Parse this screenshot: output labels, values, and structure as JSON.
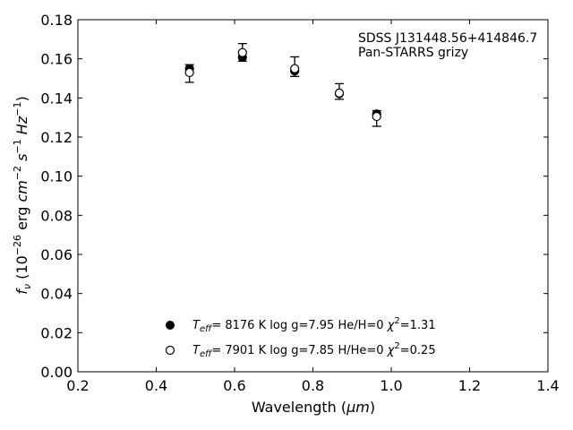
{
  "chart_data": {
    "type": "scatter",
    "xlabel_main": "Wavelength (",
    "xlabel_unit": "μm",
    "xlabel_close": ")",
    "ylabel_f": "f",
    "ylabel_sub": "ν",
    "ylabel_open": " (10",
    "ylabel_exp": "−26",
    "ylabel_erg": " erg ",
    "ylabel_cm": "cm",
    "ylabel_cm_exp": "−2",
    "ylabel_s": "s",
    "ylabel_s_exp": "−1",
    "ylabel_hz": "Hz",
    "ylabel_hz_exp": "−1",
    "ylabel_close": ")",
    "xlim": [
      0.2,
      1.4
    ],
    "ylim": [
      0.0,
      0.18
    ],
    "xticks": [
      "0.2",
      "0.4",
      "0.6",
      "0.8",
      "1.0",
      "1.2",
      "1.4"
    ],
    "yticks": [
      "0.00",
      "0.02",
      "0.04",
      "0.06",
      "0.08",
      "0.10",
      "0.12",
      "0.14",
      "0.16",
      "0.18"
    ],
    "annotation": [
      "SDSS J131448.56+414846.7",
      "Pan-STARRS grizy"
    ],
    "observed": {
      "x": [
        0.4849,
        0.6201,
        0.7535,
        0.8674,
        0.9628
      ],
      "y": [
        0.1525,
        0.1633,
        0.156,
        0.1433,
        0.1295
      ],
      "err": [
        0.0045,
        0.0045,
        0.005,
        0.004,
        0.004
      ]
    },
    "series": [
      {
        "marker": "filled",
        "x": [
          0.4849,
          0.6201,
          0.7535,
          0.8674,
          0.9628
        ],
        "y": [
          0.155,
          0.1608,
          0.1538,
          0.1422,
          0.1318
        ],
        "legend": {
          "teff_label": "T",
          "teff_sub": "eff",
          "teff_value": "=  8176 K",
          "logg": "log g=7.95",
          "comp": "He/H=0",
          "chi": "χ",
          "chi_exp": "2",
          "chi_value": "=1.31"
        }
      },
      {
        "marker": "open",
        "x": [
          0.4849,
          0.6201,
          0.7535,
          0.8674,
          0.9628
        ],
        "y": [
          0.153,
          0.1632,
          0.155,
          0.1425,
          0.1305
        ],
        "legend": {
          "teff_label": "T",
          "teff_sub": "eff",
          "teff_value": "=  7901 K",
          "logg": "log g=7.85",
          "comp": "H/He=0",
          "chi": "χ",
          "chi_exp": "2",
          "chi_value": "=0.25"
        }
      }
    ]
  }
}
